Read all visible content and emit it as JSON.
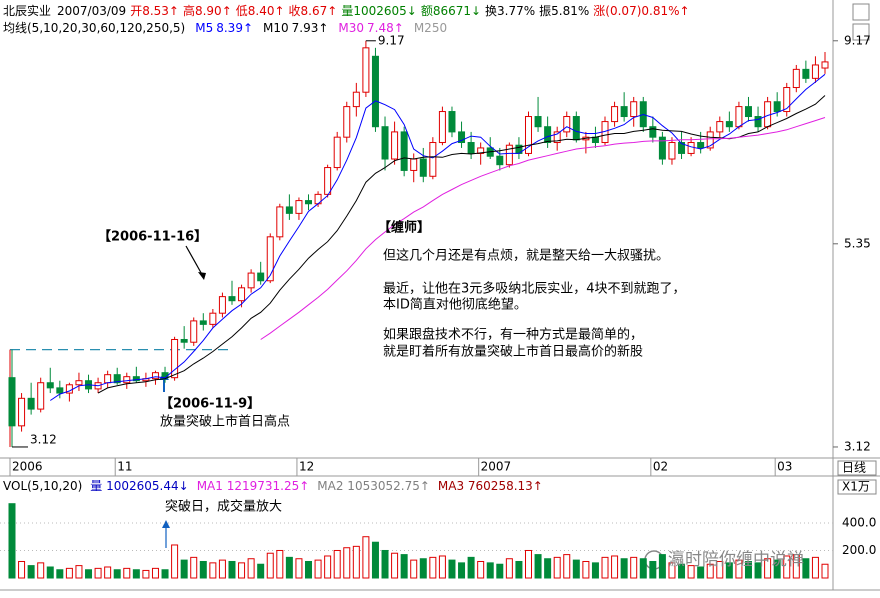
{
  "header": {
    "stock": "北辰实业",
    "date": "2007/03/09",
    "items": [
      {
        "text": "开8.53↑",
        "color": "#e00000"
      },
      {
        "text": "高8.90↑",
        "color": "#e00000"
      },
      {
        "text": "低8.40↑",
        "color": "#e00000"
      },
      {
        "text": "收8.67↑",
        "color": "#e00000"
      },
      {
        "text": "量1002605↓",
        "color": "#008000"
      },
      {
        "text": "额86671↓",
        "color": "#008000"
      },
      {
        "text": "换3.77%",
        "color": "#000000"
      },
      {
        "text": "振5.81%",
        "color": "#000000"
      },
      {
        "text": "涨(0.07)0.81%↑",
        "color": "#e00000"
      }
    ]
  },
  "watermark": "瀛时陪你缠中说禅",
  "chart_data": [
    {
      "type": "candlestick",
      "ma_title": "均线(5,10,20,30,60,120,250,5)",
      "ma_extra": "M250",
      "log_scale": true,
      "ylim": [
        3.03,
        9.69
      ],
      "yticks": [
        3.12,
        5.35,
        9.17
      ],
      "max_label": 9.17,
      "min_label": 3.12,
      "up_color": "#e00000",
      "down_color": "#008a3a",
      "ref_color": "#2a8fb0",
      "x_labels": [
        {
          "index": 0,
          "label": "2006"
        },
        {
          "index": 11,
          "label": "11"
        },
        {
          "index": 30,
          "label": "12"
        },
        {
          "index": 49,
          "label": "2007"
        },
        {
          "index": 67,
          "label": "02"
        },
        {
          "index": 80,
          "label": "03"
        }
      ],
      "period_label": "日线",
      "ohlc": [
        [
          3.75,
          4.04,
          3.12,
          3.3
        ],
        [
          3.3,
          3.6,
          3.25,
          3.55
        ],
        [
          3.55,
          3.7,
          3.4,
          3.45
        ],
        [
          3.45,
          3.75,
          3.42,
          3.7
        ],
        [
          3.7,
          3.85,
          3.6,
          3.65
        ],
        [
          3.65,
          3.72,
          3.55,
          3.6
        ],
        [
          3.6,
          3.7,
          3.52,
          3.68
        ],
        [
          3.68,
          3.8,
          3.62,
          3.72
        ],
        [
          3.72,
          3.78,
          3.6,
          3.64
        ],
        [
          3.64,
          3.75,
          3.6,
          3.7
        ],
        [
          3.7,
          3.82,
          3.65,
          3.78
        ],
        [
          3.78,
          3.85,
          3.68,
          3.7
        ],
        [
          3.7,
          3.8,
          3.64,
          3.76
        ],
        [
          3.76,
          3.86,
          3.7,
          3.72
        ],
        [
          3.72,
          3.8,
          3.66,
          3.74
        ],
        [
          3.74,
          3.82,
          3.68,
          3.8
        ],
        [
          3.8,
          3.86,
          3.7,
          3.75
        ],
        [
          3.75,
          4.18,
          3.72,
          4.15
        ],
        [
          4.15,
          4.3,
          4.05,
          4.12
        ],
        [
          4.12,
          4.4,
          4.08,
          4.36
        ],
        [
          4.36,
          4.45,
          4.25,
          4.32
        ],
        [
          4.32,
          4.5,
          4.28,
          4.45
        ],
        [
          4.45,
          4.7,
          4.4,
          4.65
        ],
        [
          4.65,
          4.85,
          4.55,
          4.6
        ],
        [
          4.6,
          4.8,
          4.52,
          4.76
        ],
        [
          4.76,
          5.0,
          4.7,
          4.95
        ],
        [
          4.95,
          5.1,
          4.8,
          4.85
        ],
        [
          4.85,
          5.5,
          4.82,
          5.45
        ],
        [
          5.45,
          5.95,
          5.4,
          5.9
        ],
        [
          5.9,
          6.1,
          5.7,
          5.8
        ],
        [
          5.8,
          6.05,
          5.7,
          6.0
        ],
        [
          6.0,
          6.1,
          5.85,
          5.95
        ],
        [
          5.95,
          6.15,
          5.9,
          6.1
        ],
        [
          6.1,
          6.6,
          6.05,
          6.55
        ],
        [
          6.55,
          7.2,
          6.5,
          7.1
        ],
        [
          7.1,
          7.8,
          7.0,
          7.7
        ],
        [
          7.7,
          8.2,
          7.5,
          8.0
        ],
        [
          8.0,
          9.17,
          7.9,
          9.0
        ],
        [
          8.8,
          9.0,
          7.2,
          7.3
        ],
        [
          7.3,
          7.5,
          6.5,
          6.7
        ],
        [
          6.7,
          7.4,
          6.6,
          7.2
        ],
        [
          7.2,
          7.3,
          6.4,
          6.5
        ],
        [
          6.5,
          6.8,
          6.3,
          6.7
        ],
        [
          6.7,
          6.9,
          6.3,
          6.4
        ],
        [
          6.4,
          7.1,
          6.35,
          7.0
        ],
        [
          7.0,
          7.7,
          6.95,
          7.6
        ],
        [
          7.6,
          7.7,
          7.1,
          7.2
        ],
        [
          7.2,
          7.4,
          6.9,
          7.0
        ],
        [
          7.0,
          7.2,
          6.7,
          6.8
        ],
        [
          6.8,
          7.0,
          6.6,
          6.9
        ],
        [
          6.9,
          7.1,
          6.7,
          6.75
        ],
        [
          6.75,
          6.9,
          6.5,
          6.6
        ],
        [
          6.6,
          7.0,
          6.55,
          6.95
        ],
        [
          6.95,
          7.1,
          6.7,
          6.8
        ],
        [
          6.8,
          7.6,
          6.75,
          7.5
        ],
        [
          7.5,
          7.9,
          7.2,
          7.3
        ],
        [
          7.3,
          7.5,
          6.9,
          7.0
        ],
        [
          7.0,
          7.3,
          6.85,
          7.2
        ],
        [
          7.2,
          7.6,
          7.1,
          7.5
        ],
        [
          7.5,
          7.6,
          7.0,
          7.05
        ],
        [
          7.05,
          7.2,
          6.8,
          7.1
        ],
        [
          7.1,
          7.3,
          6.9,
          7.0
        ],
        [
          7.0,
          7.5,
          6.95,
          7.4
        ],
        [
          7.4,
          7.8,
          7.3,
          7.7
        ],
        [
          7.7,
          8.0,
          7.4,
          7.5
        ],
        [
          7.5,
          7.9,
          7.3,
          7.8
        ],
        [
          7.8,
          7.9,
          7.2,
          7.3
        ],
        [
          7.3,
          7.5,
          7.0,
          7.1
        ],
        [
          7.1,
          7.2,
          6.6,
          6.7
        ],
        [
          6.7,
          7.1,
          6.6,
          7.0
        ],
        [
          7.0,
          7.2,
          6.7,
          6.8
        ],
        [
          6.8,
          7.1,
          6.75,
          7.0
        ],
        [
          7.0,
          7.2,
          6.8,
          6.9
        ],
        [
          6.9,
          7.3,
          6.85,
          7.2
        ],
        [
          7.2,
          7.5,
          7.1,
          7.4
        ],
        [
          7.4,
          7.6,
          7.2,
          7.3
        ],
        [
          7.3,
          7.8,
          7.25,
          7.7
        ],
        [
          7.7,
          7.9,
          7.4,
          7.5
        ],
        [
          7.5,
          7.7,
          7.2,
          7.3
        ],
        [
          7.3,
          7.9,
          7.25,
          7.8
        ],
        [
          7.8,
          8.0,
          7.5,
          7.6
        ],
        [
          7.6,
          8.2,
          7.5,
          8.1
        ],
        [
          8.1,
          8.6,
          8.0,
          8.5
        ],
        [
          8.5,
          8.7,
          8.2,
          8.3
        ],
        [
          8.3,
          8.8,
          8.2,
          8.6
        ],
        [
          8.53,
          8.9,
          8.4,
          8.67
        ]
      ],
      "series": [
        {
          "name": "M5",
          "last_label": "8.39↑",
          "color": "#0000ff",
          "values": [
            null,
            null,
            null,
            null,
            3.53,
            3.59,
            3.62,
            3.67,
            3.68,
            3.67,
            3.7,
            3.71,
            3.72,
            3.73,
            3.74,
            3.76,
            3.75,
            3.83,
            3.91,
            4.02,
            4.14,
            4.28,
            4.38,
            4.48,
            4.56,
            4.68,
            4.76,
            4.92,
            5.18,
            5.39,
            5.6,
            5.83,
            5.95,
            6.08,
            6.34,
            6.68,
            7.09,
            7.67,
            7.82,
            7.74,
            7.64,
            7.34,
            6.88,
            6.76,
            6.72,
            6.84,
            6.98,
            7.04,
            7.12,
            7.1,
            6.93,
            6.79,
            6.8,
            6.8,
            6.92,
            7.03,
            7.11,
            7.16,
            7.3,
            7.21,
            7.17,
            7.17,
            7.21,
            7.27,
            7.34,
            7.48,
            7.54,
            7.48,
            7.32,
            7.18,
            6.98,
            6.92,
            6.88,
            6.94,
            7.06,
            7.16,
            7.3,
            7.42,
            7.44,
            7.52,
            7.58,
            7.66,
            7.86,
            8.06,
            8.22,
            8.39
          ]
        },
        {
          "name": "M10",
          "last_label": "7.93↑",
          "color": "#000000",
          "values": [
            null,
            null,
            null,
            null,
            null,
            null,
            null,
            null,
            null,
            3.6,
            3.65,
            3.67,
            3.69,
            3.7,
            3.71,
            3.73,
            3.74,
            3.78,
            3.82,
            3.89,
            3.95,
            4.02,
            4.1,
            4.18,
            4.28,
            4.39,
            4.46,
            4.57,
            4.73,
            4.87,
            5.0,
            5.15,
            5.27,
            5.38,
            5.54,
            5.76,
            6.0,
            6.3,
            6.45,
            6.55,
            6.67,
            6.72,
            6.7,
            6.73,
            6.74,
            6.73,
            6.78,
            6.8,
            6.79,
            6.81,
            6.83,
            6.85,
            6.88,
            6.91,
            6.95,
            6.98,
            7.02,
            7.03,
            7.06,
            7.05,
            7.08,
            7.1,
            7.14,
            7.17,
            7.17,
            7.21,
            7.23,
            7.26,
            7.23,
            7.22,
            7.21,
            7.16,
            7.12,
            7.1,
            7.09,
            7.07,
            7.1,
            7.17,
            7.2,
            7.3,
            7.38,
            7.46,
            7.56,
            7.65,
            7.75,
            7.93
          ]
        },
        {
          "name": "M30",
          "last_label": "7.48↑",
          "color": "#e020e0",
          "values": [
            null,
            null,
            null,
            null,
            null,
            null,
            null,
            null,
            null,
            null,
            null,
            null,
            null,
            null,
            null,
            null,
            null,
            null,
            null,
            null,
            null,
            null,
            null,
            null,
            null,
            null,
            4.15,
            4.22,
            4.3,
            4.38,
            4.46,
            4.55,
            4.64,
            4.74,
            4.86,
            4.98,
            5.12,
            5.28,
            5.41,
            5.52,
            5.63,
            5.72,
            5.82,
            5.9,
            6.0,
            6.1,
            6.18,
            6.26,
            6.33,
            6.4,
            6.46,
            6.52,
            6.58,
            6.62,
            6.68,
            6.72,
            6.76,
            6.8,
            6.84,
            6.88,
            6.9,
            6.92,
            6.94,
            6.97,
            6.99,
            7.0,
            7.02,
            7.03,
            7.03,
            7.04,
            7.05,
            7.05,
            7.06,
            7.07,
            7.07,
            7.08,
            7.1,
            7.12,
            7.14,
            7.17,
            7.2,
            7.24,
            7.3,
            7.36,
            7.42,
            7.48
          ]
        }
      ],
      "annotations": {
        "label_1116": "【2006-11-16】",
        "label_119": "【2006-11-9】",
        "caption_119": "放量突破上市首日高点",
        "author": "【缠师】",
        "lines": [
          "但这几个月还是有点烦，就是整天给一大叔骚扰。",
          "最近，让他在3元多吸纳北辰实业，4块不到就跑了，",
          "本ID简直对他彻底绝望。",
          "如果跟盘技术不行，有一种方式是最简单的，",
          "就是盯着所有放量突破上市首日最高价的新股"
        ]
      }
    },
    {
      "type": "bar",
      "title": "VOL(5,10,20)",
      "items": [
        {
          "text": "量 1002605.44↓",
          "color": "#0000c0"
        },
        {
          "text": "MA1 1219731.25↑",
          "color": "#e020e0"
        },
        {
          "text": "MA2 1053052.75↑",
          "color": "#808080"
        },
        {
          "text": "MA3 760258.13↑",
          "color": "#a00000"
        }
      ],
      "unit": "X1万",
      "caption": "突破日，成交量放大",
      "ylim": [
        0,
        625
      ],
      "yticks": [
        {
          "value": 200,
          "label": "200.0"
        },
        {
          "value": 400,
          "label": "400.0"
        }
      ],
      "grid": true,
      "values": [
        540,
        120,
        90,
        110,
        80,
        60,
        70,
        90,
        60,
        70,
        80,
        60,
        70,
        60,
        55,
        70,
        60,
        240,
        130,
        150,
        120,
        110,
        130,
        120,
        110,
        140,
        100,
        180,
        200,
        150,
        140,
        120,
        130,
        160,
        200,
        220,
        230,
        300,
        260,
        200,
        180,
        170,
        130,
        140,
        150,
        160,
        130,
        110,
        150,
        120,
        110,
        100,
        140,
        120,
        200,
        170,
        140,
        150,
        170,
        130,
        120,
        110,
        150,
        160,
        140,
        150,
        140,
        120,
        170,
        110,
        100,
        90,
        80,
        100,
        120,
        110,
        130,
        120,
        110,
        140,
        130,
        160,
        170,
        140,
        150,
        100
      ]
    }
  ]
}
